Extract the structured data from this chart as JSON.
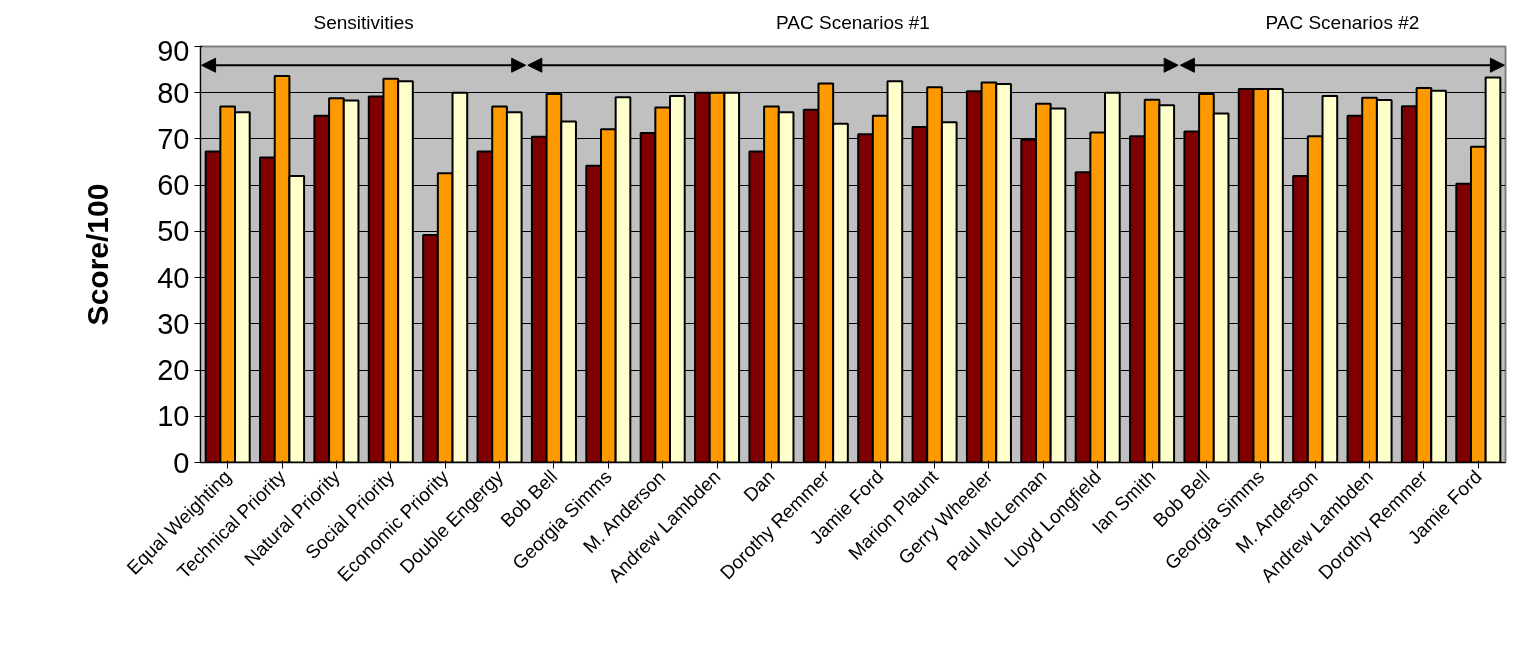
{
  "chart_data": {
    "type": "bar",
    "ylabel": "Score/100",
    "categories": [
      "Equal Weighting",
      "Technical Priority",
      "Natural Priority",
      "Social Priority",
      "Economic Priority",
      "Double Engergy",
      "Bob Bell",
      "Georgia Simms",
      "M. Anderson",
      "Andrew Lambden",
      "Dan",
      "Dorothy Remmer",
      "Jamie Ford",
      "Marion Plaunt",
      "Gerry Wheeler",
      "Paul McLennan",
      "Lloyd Longfield",
      "Ian Smith",
      "Bob Bell",
      "Georgia Simms",
      "M. Anderson",
      "Andrew Lambden",
      "Dorothy Remmer",
      "Jamie Ford"
    ],
    "series": [
      {
        "color": "#800000",
        "values": [
          67.3,
          66,
          75,
          79.2,
          49.2,
          67.3,
          70.5,
          64.2,
          71.3,
          80,
          67.3,
          76.3,
          71,
          72.6,
          80.3,
          69.8,
          62.8,
          70.6,
          71.6,
          80.8,
          62,
          75,
          77.1,
          60.3
        ]
      },
      {
        "color": "#ff9900",
        "values": [
          77,
          83.6,
          78.8,
          83,
          62.6,
          77,
          79.7,
          72.1,
          76.8,
          80,
          77,
          82,
          75,
          81.2,
          82.2,
          77.6,
          71.4,
          78.5,
          79.7,
          80.8,
          70.6,
          78.9,
          81,
          68.3
        ]
      },
      {
        "color": "#ffffcc",
        "values": [
          75.8,
          62,
          78.3,
          82.5,
          80,
          75.8,
          73.8,
          79,
          79.3,
          80,
          75.8,
          73.3,
          82.5,
          73.6,
          81.9,
          76.6,
          80,
          77.3,
          75.5,
          80.8,
          79.3,
          78.4,
          80.4,
          83.3
        ]
      }
    ],
    "ylim": [
      0,
      90
    ],
    "yticks": [
      0,
      10,
      20,
      30,
      40,
      50,
      60,
      70,
      80,
      90
    ],
    "grid": "y",
    "annotations": [
      "Sensitivities",
      "PAC Scenarios #1",
      "PAC Scenarios #2"
    ]
  }
}
